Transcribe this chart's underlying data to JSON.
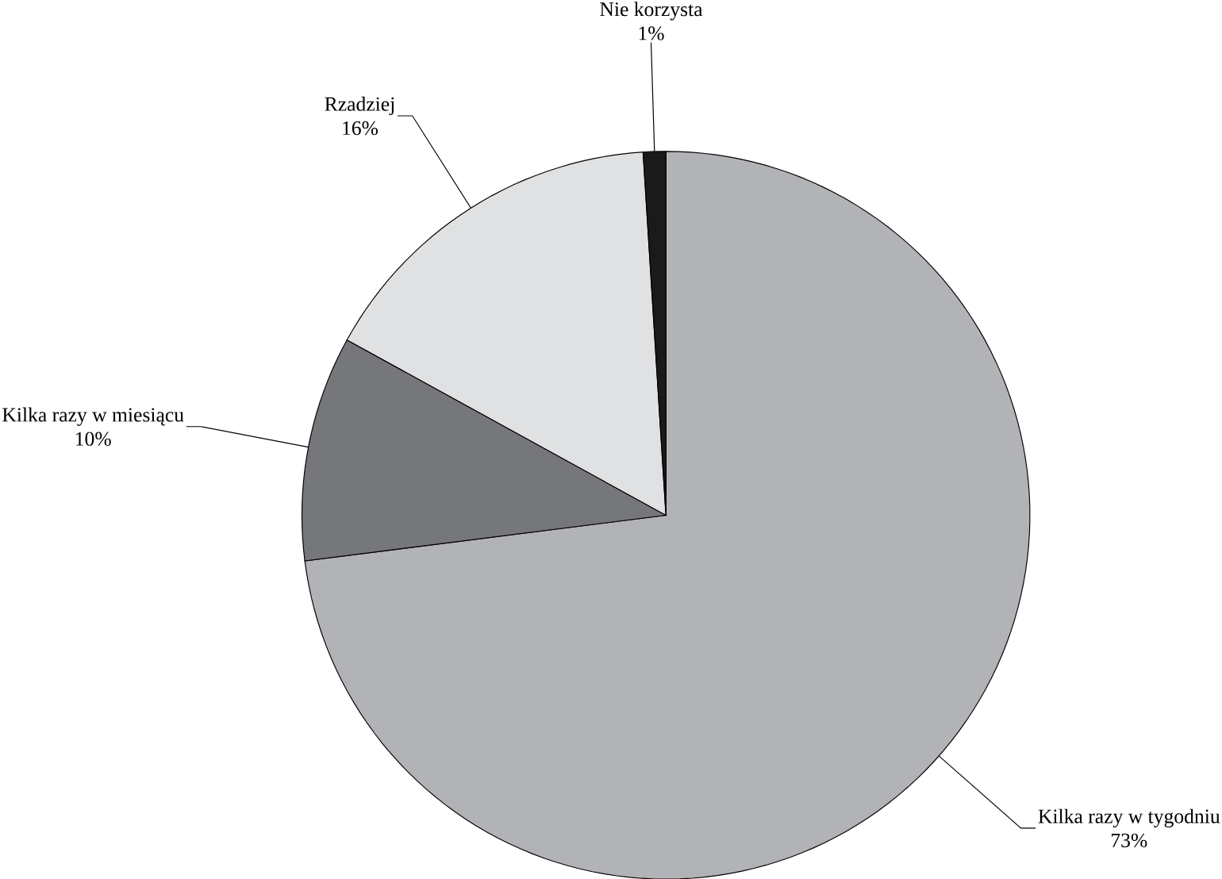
{
  "chart_data": {
    "type": "pie",
    "categories": [
      "Kilka razy w tygodniu",
      "Kilka razy w miesiącu",
      "Rzadziej",
      "Nie korzysta"
    ],
    "values": [
      73,
      10,
      16,
      1
    ],
    "value_labels": [
      "73%",
      "10%",
      "16%",
      "1%"
    ],
    "colors": [
      "#b2b3b6",
      "#76777a",
      "#e0e1e2",
      "#1a1a1a"
    ]
  }
}
